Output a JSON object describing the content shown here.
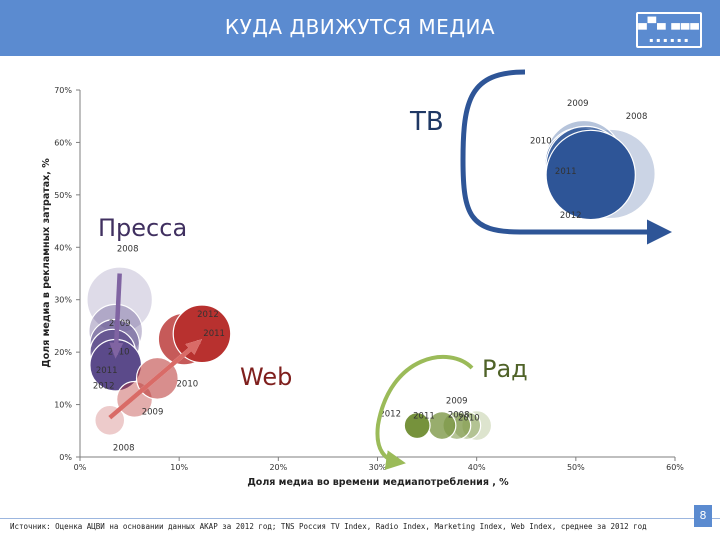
{
  "header": {
    "title": "КУДА ДВИЖУТСЯ МЕДИА"
  },
  "footer": {
    "source": "Источник: Оценка АЦВИ на основании данных АКАР за 2012 год; TNS Россия TV Index, Radio Index, Marketing Index, Web Index, среднее за 2012 год",
    "page": "8"
  },
  "colors": {
    "header_bg": "#5b8bd0",
    "tv": "#2e5597",
    "press": "#5b4a8a",
    "web": "#b8312f",
    "radio": "#76923c"
  },
  "chart_data": {
    "type": "scatter",
    "subtype": "bubble",
    "title": "",
    "xlabel": "Доля медиа во времени медиапотребления , %",
    "ylabel": "Доля медиа в рекламных затратах, %",
    "xlim": [
      0,
      60
    ],
    "ylim": [
      0,
      70
    ],
    "xticks": [
      "0%",
      "10%",
      "20%",
      "30%",
      "40%",
      "50%",
      "60%"
    ],
    "yticks": [
      "0%",
      "10%",
      "20%",
      "30%",
      "40%",
      "50%",
      "60%",
      "70%"
    ],
    "grid": false,
    "series": [
      {
        "name": "ТВ",
        "color": "#2e5597",
        "points": [
          {
            "label": "2008",
            "x": 53.5,
            "y": 54.0,
            "r": 4.5,
            "opacity": 0.25
          },
          {
            "label": "2009",
            "x": 50.8,
            "y": 57.0,
            "r": 3.8,
            "opacity": 0.35
          },
          {
            "label": "2010",
            "x": 50.5,
            "y": 56.0,
            "r": 3.6,
            "opacity": 0.55
          },
          {
            "label": "2011",
            "x": 51.0,
            "y": 55.5,
            "r": 4.0,
            "opacity": 0.75
          },
          {
            "label": "2012",
            "x": 51.5,
            "y": 53.8,
            "r": 4.5,
            "opacity": 1.0
          }
        ]
      },
      {
        "name": "Пресса",
        "color": "#5b4a8a",
        "points": [
          {
            "label": "2008",
            "x": 4.0,
            "y": 30.0,
            "r": 3.3,
            "opacity": 0.2
          },
          {
            "label": "2009",
            "x": 3.6,
            "y": 24.0,
            "r": 2.7,
            "opacity": 0.35
          },
          {
            "label": "2010",
            "x": 3.5,
            "y": 21.5,
            "r": 2.5,
            "opacity": 0.55
          },
          {
            "label": "2011",
            "x": 3.3,
            "y": 20.0,
            "r": 2.3,
            "opacity": 0.75
          },
          {
            "label": "2012",
            "x": 3.6,
            "y": 17.5,
            "r": 2.6,
            "opacity": 1.0
          }
        ]
      },
      {
        "name": "Web",
        "color": "#b8312f",
        "points": [
          {
            "label": "2008",
            "x": 3.0,
            "y": 7.0,
            "r": 1.5,
            "opacity": 0.25
          },
          {
            "label": "2009",
            "x": 5.5,
            "y": 11.0,
            "r": 1.8,
            "opacity": 0.4
          },
          {
            "label": "2010",
            "x": 7.8,
            "y": 15.0,
            "r": 2.1,
            "opacity": 0.55
          },
          {
            "label": "2011",
            "x": 10.5,
            "y": 22.5,
            "r": 2.6,
            "opacity": 0.8
          },
          {
            "label": "2012",
            "x": 12.3,
            "y": 23.5,
            "r": 2.9,
            "opacity": 1.0
          }
        ]
      },
      {
        "name": "Рад",
        "color": "#76923c",
        "points": [
          {
            "label": "2008",
            "x": 40.0,
            "y": 6.0,
            "r": 1.5,
            "opacity": 0.25
          },
          {
            "label": "2009",
            "x": 39.0,
            "y": 6.0,
            "r": 1.4,
            "opacity": 0.4
          },
          {
            "label": "2010",
            "x": 38.0,
            "y": 6.0,
            "r": 1.4,
            "opacity": 0.55
          },
          {
            "label": "2011",
            "x": 36.5,
            "y": 6.0,
            "r": 1.4,
            "opacity": 0.75
          },
          {
            "label": "2012",
            "x": 34.0,
            "y": 6.0,
            "r": 1.3,
            "opacity": 1.0
          }
        ]
      }
    ]
  }
}
